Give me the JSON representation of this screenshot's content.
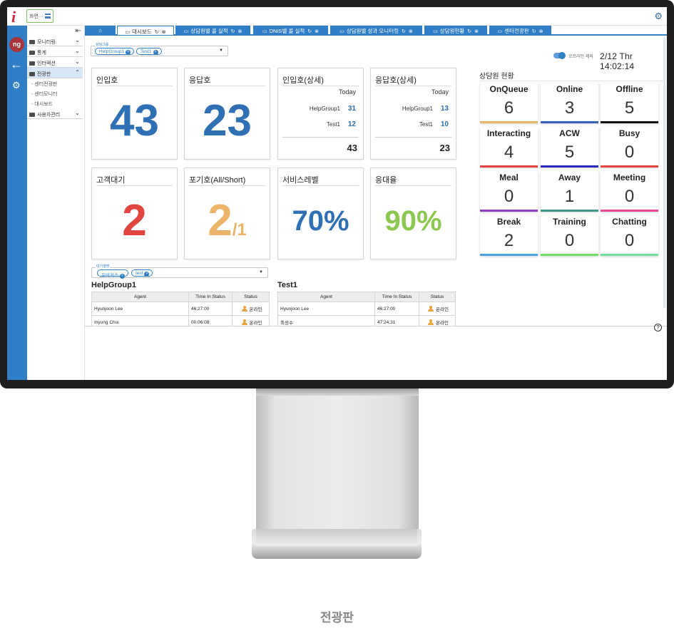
{
  "app": {
    "screen_selector": "화면···",
    "user_initials": "ng",
    "caption": "전광판"
  },
  "sidebar": {
    "groups": [
      {
        "label": "모니터링",
        "open": false
      },
      {
        "label": "통계",
        "open": false
      },
      {
        "label": "인터렉션",
        "open": false
      },
      {
        "label": "전광판",
        "open": true,
        "children": [
          "- 센터전광판",
          "- 센터모니터",
          "- 대시보드"
        ]
      },
      {
        "label": "사용자관리",
        "open": false
      }
    ]
  },
  "tabs": [
    {
      "label": "대시보드",
      "active": true
    },
    {
      "label": "상담원별 콜 실적",
      "active": false
    },
    {
      "label": "DNIS별 콜 실적",
      "active": false
    },
    {
      "label": "상담원별 성과 모니터링",
      "active": false
    },
    {
      "label": "상담원현황",
      "active": false
    },
    {
      "label": "센터전광판",
      "active": false
    }
  ],
  "header": {
    "filter1_legend": "상담그룹",
    "filter1_chips": [
      "HelpGroup1",
      "Test1"
    ],
    "toggle_label": "오프라인 제외",
    "clock": "2/12 Thr 14:02:14"
  },
  "cards": {
    "inbound": {
      "title": "인입호",
      "value": "43"
    },
    "answered": {
      "title": "응답호",
      "value": "23"
    },
    "inbound_detail": {
      "title": "인입호(상세)",
      "today": "Today",
      "rows": [
        {
          "name": "HelpGroup1",
          "value": "31"
        },
        {
          "name": "Test1",
          "value": "12"
        }
      ],
      "total": "43"
    },
    "answered_detail": {
      "title": "응답호(상세)",
      "today": "Today",
      "rows": [
        {
          "name": "HelpGroup1",
          "value": "13"
        },
        {
          "name": "Test1",
          "value": "10"
        }
      ],
      "total": "23"
    },
    "waiting": {
      "title": "고객대기",
      "value": "2"
    },
    "abandoned": {
      "title": "포기호(All/Short)",
      "value": "2",
      "short": "/1"
    },
    "service_level": {
      "title": "서비스레벨",
      "value": "70%"
    },
    "answer_rate": {
      "title": "응대율",
      "value": "90%"
    }
  },
  "agent_status": {
    "title": "상담원 현황",
    "tiles": [
      {
        "label": "OnQueue",
        "value": "6",
        "color": "#e8b469"
      },
      {
        "label": "Online",
        "value": "3",
        "color": "#3a5fb8"
      },
      {
        "label": "Offline",
        "value": "5",
        "color": "#111111"
      },
      {
        "label": "Interacting",
        "value": "4",
        "color": "#e0453f"
      },
      {
        "label": "ACW",
        "value": "5",
        "color": "#2a2ab8"
      },
      {
        "label": "Busy",
        "value": "0",
        "color": "#e0453f"
      },
      {
        "label": "Meal",
        "value": "0",
        "color": "#8e3fc0"
      },
      {
        "label": "Away",
        "value": "1",
        "color": "#3e9a8a"
      },
      {
        "label": "Meeting",
        "value": "0",
        "color": "#e84a9a"
      },
      {
        "label": "Break",
        "value": "2",
        "color": "#4aa2e8"
      },
      {
        "label": "Training",
        "value": "0",
        "color": "#6fe06a"
      },
      {
        "label": "Chatting",
        "value": "0",
        "color": "#6fe0a0"
      }
    ]
  },
  "queues": {
    "filter2_legend": "대기열명",
    "filter2_chips": [
      "유비커스",
      "test"
    ],
    "columns": [
      "Agent",
      "Time In Status",
      "Status"
    ],
    "groups": [
      {
        "title": "HelpGroup1",
        "rows": [
          {
            "agent": "Hyunjoon Lee",
            "time": "46:27:00",
            "status": "온라인"
          },
          {
            "agent": "Inyong Choi",
            "time": "00:06:08",
            "status": "온라인"
          }
        ]
      },
      {
        "title": "Test1",
        "rows": [
          {
            "agent": "Hyunjoon Lee",
            "time": "46:27:00",
            "status": "온라인"
          },
          {
            "agent": "최성수",
            "time": "47:24:31",
            "status": "온라인"
          }
        ]
      }
    ]
  },
  "colors": {
    "accent": "#2f7ec6",
    "blue_value": "#2f6fb4",
    "red_value": "#e0453f",
    "orange_value": "#ecb46a",
    "green_value": "#8cc751"
  },
  "icons": [
    "home-icon",
    "dashboard-icon",
    "refresh-icon",
    "close-circle-icon",
    "gear-icon",
    "back-arrow-icon",
    "folder-icon",
    "chevron-down-icon",
    "chevron-up-icon",
    "collapse-panel-icon",
    "person-icon",
    "help-icon",
    "menu-icon"
  ]
}
